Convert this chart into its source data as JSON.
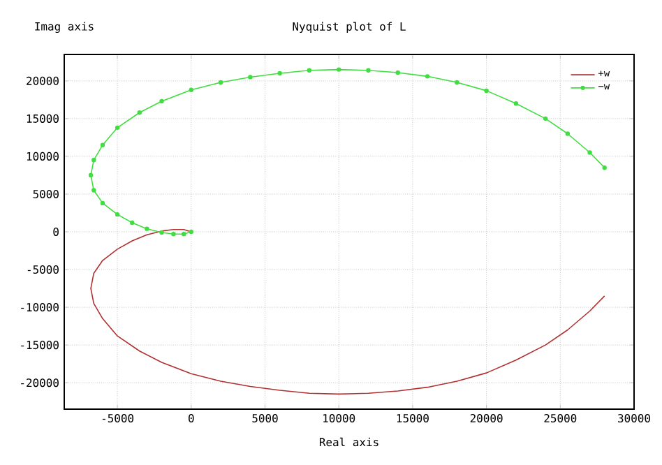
{
  "chart_data": {
    "type": "line",
    "title": "Nyquist plot of L",
    "xlabel": "Real axis",
    "ylabel": "Imag axis",
    "xlim": [
      -8600,
      30000
    ],
    "ylim": [
      -23500,
      23500
    ],
    "xticks": [
      -5000,
      0,
      5000,
      10000,
      15000,
      20000,
      25000,
      30000
    ],
    "yticks": [
      -20000,
      -15000,
      -10000,
      -5000,
      0,
      5000,
      10000,
      15000,
      20000
    ],
    "grid": true,
    "legend": "top right",
    "series": [
      {
        "name": "+w",
        "color": "#b03030",
        "marker": "none",
        "x": [
          28000,
          27000,
          25500,
          24000,
          22000,
          20000,
          18000,
          16000,
          14000,
          12000,
          10000,
          8000,
          6000,
          4000,
          2000,
          0,
          -2000,
          -3500,
          -5000,
          -6000,
          -6600,
          -6800,
          -6600,
          -6000,
          -5000,
          -4000,
          -3000,
          -2000,
          -1200,
          -500,
          0
        ],
        "values": [
          -8500,
          -10500,
          -13000,
          -15000,
          -17000,
          -18700,
          -19800,
          -20600,
          -21100,
          -21400,
          -21500,
          -21400,
          -21000,
          -20500,
          -19800,
          -18800,
          -17300,
          -15800,
          -13800,
          -11500,
          -9500,
          -7500,
          -5500,
          -3800,
          -2300,
          -1200,
          -400,
          100,
          300,
          300,
          0
        ]
      },
      {
        "name": "−w",
        "color": "#40dd40",
        "marker": "circle",
        "x": [
          28000,
          27000,
          25500,
          24000,
          22000,
          20000,
          18000,
          16000,
          14000,
          12000,
          10000,
          8000,
          6000,
          4000,
          2000,
          0,
          -2000,
          -3500,
          -5000,
          -6000,
          -6600,
          -6800,
          -6600,
          -6000,
          -5000,
          -4000,
          -3000,
          -2000,
          -1200,
          -500,
          0
        ],
        "values": [
          8500,
          10500,
          13000,
          15000,
          17000,
          18700,
          19800,
          20600,
          21100,
          21400,
          21500,
          21400,
          21000,
          20500,
          19800,
          18800,
          17300,
          15800,
          13800,
          11500,
          9500,
          7500,
          5500,
          3800,
          2300,
          1200,
          400,
          -100,
          -300,
          -300,
          0
        ]
      }
    ]
  }
}
